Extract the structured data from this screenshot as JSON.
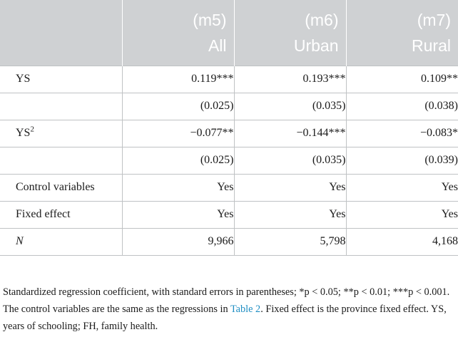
{
  "table": {
    "columns": [
      {
        "model": "(m5)",
        "sample": "All"
      },
      {
        "model": "(m6)",
        "sample": "Urban"
      },
      {
        "model": "(m7)",
        "sample": "Rural"
      }
    ],
    "rows": [
      {
        "label": "YS",
        "label_sup": "",
        "label_italic": false,
        "values": [
          "0.119***",
          "0.193***",
          "0.109**"
        ]
      },
      {
        "label": "",
        "label_sup": "",
        "label_italic": false,
        "values": [
          "(0.025)",
          "(0.035)",
          "(0.038)"
        ]
      },
      {
        "label": "YS",
        "label_sup": "2",
        "label_italic": false,
        "values": [
          "−0.077**",
          "−0.144***",
          "−0.083*"
        ]
      },
      {
        "label": "",
        "label_sup": "",
        "label_italic": false,
        "values": [
          "(0.025)",
          "(0.035)",
          "(0.039)"
        ]
      },
      {
        "label": "Control variables",
        "label_sup": "",
        "label_italic": false,
        "values": [
          "Yes",
          "Yes",
          "Yes"
        ]
      },
      {
        "label": "Fixed effect",
        "label_sup": "",
        "label_italic": false,
        "values": [
          "Yes",
          "Yes",
          "Yes"
        ]
      },
      {
        "label": "N",
        "label_sup": "",
        "label_italic": true,
        "values": [
          "9,966",
          "5,798",
          "4,168"
        ]
      }
    ]
  },
  "note": {
    "before_link": "Standardized regression coefficient, with standard errors in parentheses; *p < 0.05; **p < 0.01; ***p < 0.001. The control variables are the same as the regressions in ",
    "link_text": "Table 2",
    "after_link": ". Fixed effect is the province fixed effect. YS, years of schooling; FH, family health.",
    "link_color": "#1f8ec3"
  }
}
